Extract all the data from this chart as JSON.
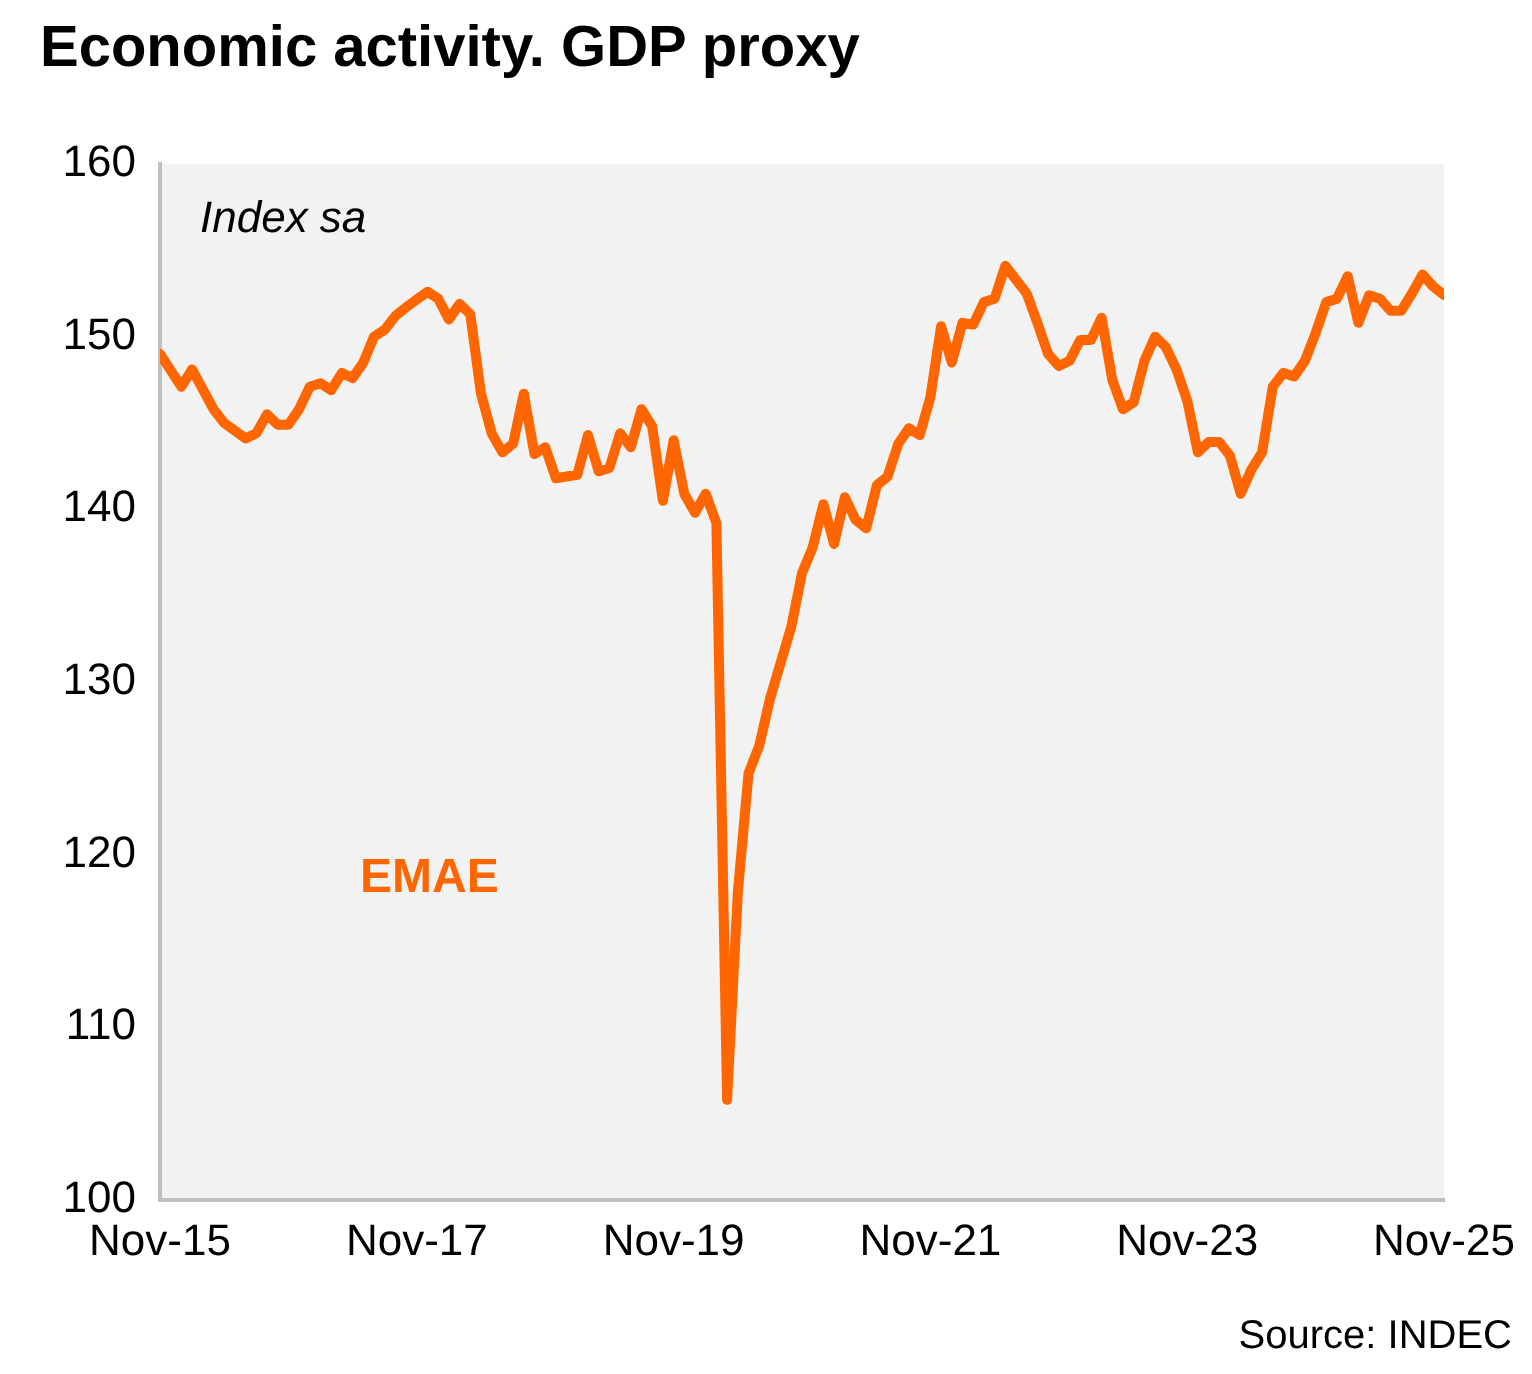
{
  "chart_data": {
    "type": "line",
    "title": "Economic activity. GDP proxy",
    "annotations": [
      "Index sa",
      "Source: INDEC"
    ],
    "xlim": [
      "2015-11",
      "2025-11"
    ],
    "xticks": [
      {
        "value": "2015-11",
        "label": "Nov-15"
      },
      {
        "value": "2017-11",
        "label": "Nov-17"
      },
      {
        "value": "2019-11",
        "label": "Nov-19"
      },
      {
        "value": "2021-11",
        "label": "Nov-21"
      },
      {
        "value": "2023-11",
        "label": "Nov-23"
      },
      {
        "value": "2025-11",
        "label": "Nov-25"
      }
    ],
    "ylim": [
      100,
      160
    ],
    "yticks": [
      100,
      110,
      120,
      130,
      140,
      150,
      160
    ],
    "grid": false,
    "legend": false,
    "marker": "none",
    "line_style": "solid",
    "series": [
      {
        "name": "EMAE",
        "color": "#ff6600",
        "x": [
          "2015-11",
          "2016-01",
          "2016-02",
          "2016-04",
          "2016-05",
          "2016-07",
          "2016-08",
          "2016-09",
          "2016-10",
          "2016-11",
          "2016-12",
          "2017-01",
          "2017-02",
          "2017-03",
          "2017-04",
          "2017-05",
          "2017-06",
          "2017-07",
          "2017-08",
          "2017-09",
          "2017-10",
          "2017-12",
          "2018-01",
          "2018-02",
          "2018-03",
          "2018-04",
          "2018-05",
          "2018-06",
          "2018-07",
          "2018-08",
          "2018-09",
          "2018-10",
          "2018-11",
          "2018-12",
          "2019-02",
          "2019-03",
          "2019-04",
          "2019-05",
          "2019-06",
          "2019-07",
          "2019-08",
          "2019-09",
          "2019-10",
          "2019-11",
          "2019-12",
          "2020-01",
          "2020-02",
          "2020-03",
          "2020-04",
          "2020-05",
          "2020-06",
          "2020-07",
          "2020-08",
          "2020-10",
          "2020-11",
          "2020-12",
          "2021-01",
          "2021-02",
          "2021-03",
          "2021-04",
          "2021-05",
          "2021-06",
          "2021-07",
          "2021-08",
          "2021-09",
          "2021-10",
          "2021-11",
          "2021-12",
          "2022-01",
          "2022-02",
          "2022-03",
          "2022-04",
          "2022-05",
          "2022-06",
          "2022-08",
          "2022-09",
          "2022-10",
          "2022-11",
          "2022-12",
          "2023-01",
          "2023-02",
          "2023-03",
          "2023-04",
          "2023-05",
          "2023-06",
          "2023-07",
          "2023-08",
          "2023-09",
          "2023-10",
          "2023-11",
          "2023-12",
          "2024-01",
          "2024-02",
          "2024-03",
          "2024-04",
          "2024-05",
          "2024-06",
          "2024-07",
          "2024-08",
          "2024-09",
          "2024-10",
          "2024-11",
          "2024-12",
          "2025-01",
          "2025-02",
          "2025-03",
          "2025-04",
          "2025-05",
          "2025-06",
          "2025-07",
          "2025-08",
          "2025-09",
          "2025-10",
          "2025-11"
        ],
        "values": [
          149.0,
          147.1,
          148.1,
          145.8,
          145.0,
          144.1,
          144.4,
          145.5,
          144.9,
          144.9,
          145.8,
          147.1,
          147.3,
          146.9,
          147.9,
          147.6,
          148.5,
          150.0,
          150.4,
          151.2,
          151.7,
          152.6,
          152.2,
          151.0,
          151.9,
          151.3,
          146.7,
          144.4,
          143.3,
          143.8,
          146.7,
          143.2,
          143.6,
          141.8,
          142.0,
          144.3,
          142.2,
          142.4,
          144.4,
          143.6,
          145.8,
          144.8,
          140.5,
          144.0,
          140.9,
          139.8,
          140.9,
          139.2,
          105.8,
          117.8,
          124.7,
          126.3,
          129.0,
          133.2,
          136.3,
          137.8,
          140.3,
          138.0,
          140.7,
          139.4,
          138.9,
          141.4,
          141.9,
          143.8,
          144.7,
          144.3,
          146.5,
          150.6,
          148.5,
          150.8,
          150.7,
          152.0,
          152.2,
          154.1,
          152.5,
          150.8,
          149.0,
          148.3,
          148.6,
          149.8,
          149.8,
          151.1,
          147.5,
          145.8,
          146.2,
          148.6,
          150.0,
          149.4,
          148.1,
          146.3,
          143.3,
          143.9,
          143.9,
          143.1,
          140.9,
          142.3,
          143.3,
          147.1,
          147.9,
          147.7,
          148.6,
          150.2,
          152.0,
          152.2,
          153.5,
          150.8,
          152.4,
          152.2,
          151.5,
          151.5,
          152.5,
          153.6,
          152.9,
          152.4
        ]
      }
    ]
  }
}
